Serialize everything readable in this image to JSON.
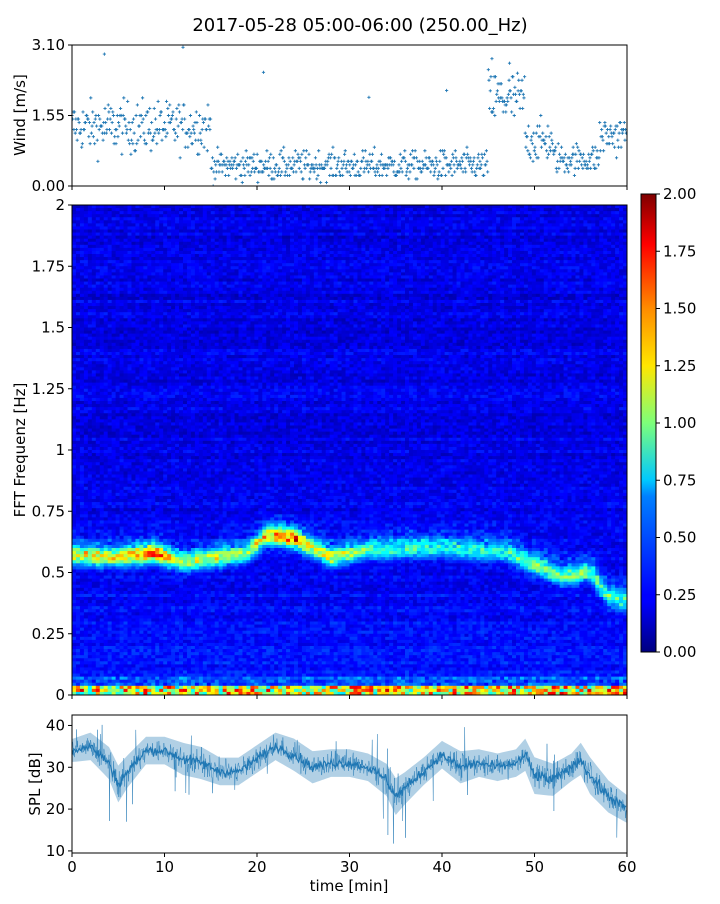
{
  "figure": {
    "title": "2017-05-28 05:00-06:00 (250.00_Hz)"
  },
  "chart_data": [
    {
      "type": "scatter",
      "name": "wind",
      "ylabel": "Wind [m/s]",
      "xlim": [
        0,
        60
      ],
      "ylim": [
        0,
        3.1
      ],
      "yticks": [
        0.0,
        1.55,
        3.1
      ],
      "ytick_labels": [
        "0.00",
        "1.55",
        "3.10"
      ],
      "marker": "+",
      "color": "#1f77b4",
      "segments": [
        {
          "t": [
            0,
            15
          ],
          "mean": 1.3,
          "spread": 0.6
        },
        {
          "t": [
            15,
            45
          ],
          "mean": 0.45,
          "spread": 0.35
        },
        {
          "t": [
            45,
            49
          ],
          "mean": 1.9,
          "spread": 0.7
        },
        {
          "t": [
            49,
            52
          ],
          "mean": 1.0,
          "spread": 0.5
        },
        {
          "t": [
            52,
            57
          ],
          "mean": 0.6,
          "spread": 0.35
        },
        {
          "t": [
            57,
            60
          ],
          "mean": 1.1,
          "spread": 0.5
        }
      ],
      "notable_points": [
        {
          "x": 3.5,
          "y": 2.9
        },
        {
          "x": 12.0,
          "y": 3.05
        },
        {
          "x": 20.7,
          "y": 2.5
        },
        {
          "x": 32.1,
          "y": 1.95
        },
        {
          "x": 40.5,
          "y": 2.1
        },
        {
          "x": 45.4,
          "y": 2.8
        },
        {
          "x": 47.3,
          "y": 2.7
        }
      ]
    },
    {
      "type": "heatmap",
      "name": "spectrogram",
      "ylabel": "FFT Frequenz [Hz]",
      "xlim": [
        0,
        60
      ],
      "ylim": [
        0,
        2
      ],
      "yticks": [
        0,
        0.25,
        0.5,
        0.75,
        1,
        1.25,
        1.5,
        1.75,
        2
      ],
      "ytick_labels": [
        "0",
        "0.25",
        "0.5",
        "0.75",
        "1",
        "1.25",
        "1.5",
        "1.75",
        "2"
      ],
      "colormap": "jet",
      "color_range": [
        0.0,
        2.0
      ],
      "colorbar_ticks": [
        "0.00",
        "0.25",
        "0.50",
        "0.75",
        "1.00",
        "1.25",
        "1.50",
        "1.75",
        "2.00"
      ],
      "background_level": 0.2,
      "peak_band": [
        {
          "x": 0,
          "f": 0.57,
          "level": 1.1
        },
        {
          "x": 5,
          "f": 0.56,
          "level": 1.2
        },
        {
          "x": 9,
          "f": 0.58,
          "level": 1.6
        },
        {
          "x": 12,
          "f": 0.54,
          "level": 0.9
        },
        {
          "x": 16,
          "f": 0.56,
          "level": 1.0
        },
        {
          "x": 19,
          "f": 0.58,
          "level": 0.8
        },
        {
          "x": 21,
          "f": 0.65,
          "level": 1.3
        },
        {
          "x": 24,
          "f": 0.64,
          "level": 1.6
        },
        {
          "x": 26,
          "f": 0.6,
          "level": 1.0
        },
        {
          "x": 28,
          "f": 0.56,
          "level": 1.1
        },
        {
          "x": 32,
          "f": 0.59,
          "level": 0.7
        },
        {
          "x": 40,
          "f": 0.6,
          "level": 0.6
        },
        {
          "x": 47,
          "f": 0.58,
          "level": 0.6
        },
        {
          "x": 50,
          "f": 0.53,
          "level": 0.9
        },
        {
          "x": 53,
          "f": 0.48,
          "level": 0.8
        },
        {
          "x": 56,
          "f": 0.5,
          "level": 0.8
        },
        {
          "x": 58,
          "f": 0.4,
          "level": 0.7
        },
        {
          "x": 60,
          "f": 0.38,
          "level": 0.7
        }
      ],
      "low_band": {
        "f": [
          0,
          0.04
        ],
        "level": 1.3
      }
    },
    {
      "type": "area",
      "name": "spl",
      "xlabel": "time [min]",
      "ylabel": "SPL [dB]",
      "xlim": [
        0,
        60
      ],
      "ylim": [
        9.5,
        42.5
      ],
      "xticks": [
        0,
        10,
        20,
        30,
        40,
        50,
        60
      ],
      "xtick_labels": [
        "0",
        "10",
        "20",
        "30",
        "40",
        "50",
        "60"
      ],
      "yticks": [
        10,
        20,
        30,
        40
      ],
      "ytick_labels": [
        "10",
        "20",
        "30",
        "40"
      ],
      "color": "#1f77b4",
      "x": [
        0,
        2,
        4,
        5,
        6,
        8,
        10,
        12,
        14,
        16,
        18,
        20,
        22,
        24,
        26,
        28,
        30,
        32,
        34,
        35,
        36,
        38,
        40,
        42,
        44,
        46,
        48,
        49,
        50,
        52,
        54,
        55,
        56,
        58,
        60
      ],
      "y": [
        34,
        35,
        31,
        26,
        29,
        34,
        34,
        32,
        31,
        29,
        29,
        32,
        35,
        33,
        30,
        31,
        31,
        30,
        27,
        23,
        25,
        29,
        33,
        30,
        31,
        30,
        31,
        33,
        28,
        27,
        30,
        32,
        28,
        23,
        20
      ],
      "band": [
        5,
        6,
        7,
        8,
        7,
        6,
        6,
        7,
        7,
        6,
        6,
        6,
        6,
        7,
        7,
        6,
        6,
        6,
        7,
        8,
        7,
        6,
        6,
        7,
        6,
        6,
        6,
        7,
        8,
        7,
        6,
        7,
        8,
        7,
        6
      ]
    }
  ]
}
